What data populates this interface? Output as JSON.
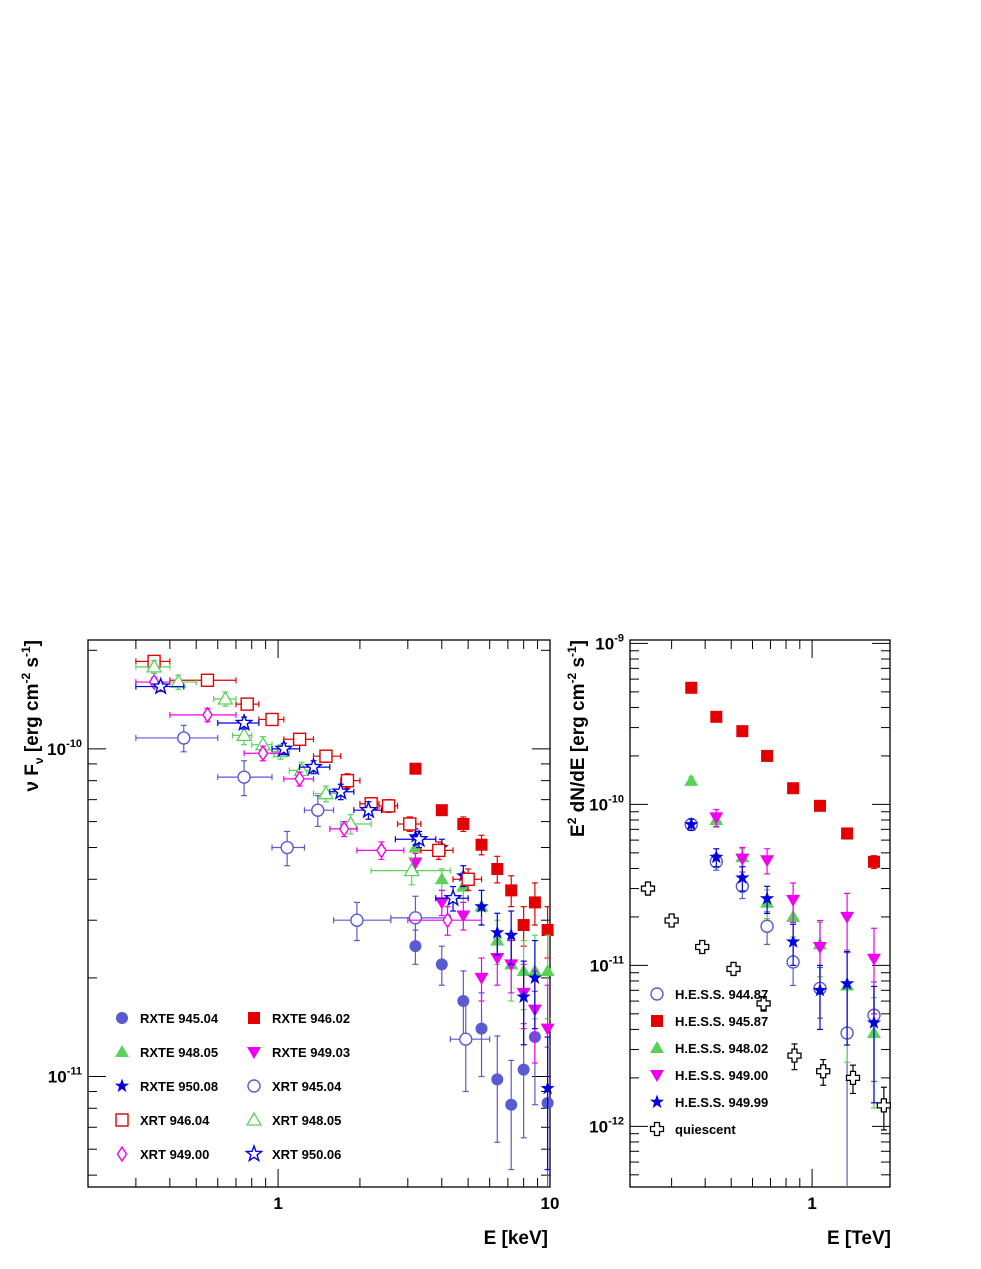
{
  "chart_data": [
    {
      "type": "scatter",
      "xlabel": "E [keV]",
      "ylabel": "ν F_ν [erg cm^-2 s^-1]",
      "x_scale": "log",
      "y_scale": "log",
      "xlim": [
        0.2,
        10
      ],
      "ylim": [
        4.6e-12,
        2.15e-10
      ],
      "x_tick_labels": [
        "1",
        "10"
      ],
      "y_tick_labels": [
        "10^-10",
        "10^-11"
      ],
      "legend_position": "bottom-left",
      "series": [
        {
          "name": "RXTE 945.04",
          "color": "#5a5ad2",
          "marker": "circle-filled",
          "points": [
            [
              3.2,
              2.5e-11,
              0,
              3e-12
            ],
            [
              4.0,
              2.2e-11,
              0,
              3e-12
            ],
            [
              4.8,
              1.7e-11,
              0,
              4e-12
            ],
            [
              5.6,
              1.4e-11,
              0,
              4e-12
            ],
            [
              6.4,
              9.8e-12,
              0,
              3.5e-12
            ],
            [
              7.2,
              8.2e-12,
              0,
              3e-12
            ],
            [
              8.0,
              1.05e-11,
              0,
              4e-12
            ],
            [
              8.8,
              1.32e-11,
              0,
              5e-12
            ],
            [
              9.8,
              8.3e-12,
              0,
              4e-12
            ]
          ]
        },
        {
          "name": "RXTE 946.02",
          "color": "#e20000",
          "marker": "square-filled",
          "points": [
            [
              3.2,
              8.7e-11,
              0,
              2e-12
            ],
            [
              4.0,
              6.5e-11,
              0,
              2e-12
            ],
            [
              4.8,
              5.9e-11,
              0,
              3e-12
            ],
            [
              5.6,
              5.1e-11,
              0,
              3.5e-12
            ],
            [
              6.4,
              4.3e-11,
              0,
              4e-12
            ],
            [
              7.2,
              3.7e-11,
              0,
              4e-12
            ],
            [
              8.0,
              2.9e-11,
              0,
              4e-12
            ],
            [
              8.8,
              3.4e-11,
              0,
              5e-12
            ],
            [
              9.8,
              2.8e-11,
              0,
              5e-12
            ]
          ]
        },
        {
          "name": "RXTE 948.05",
          "color": "#5ad25a",
          "marker": "triangle-up-filled",
          "points": [
            [
              3.2,
              5e-11,
              0,
              4e-12
            ],
            [
              4.0,
              4e-11,
              0,
              3e-12
            ],
            [
              4.8,
              3.8e-11,
              0,
              4e-12
            ],
            [
              5.6,
              3.3e-11,
              0,
              4e-12
            ],
            [
              6.4,
              2.6e-11,
              0,
              4e-12
            ],
            [
              7.2,
              2.2e-11,
              0,
              5e-12
            ],
            [
              8.0,
              2.1e-11,
              0,
              5e-12
            ],
            [
              8.8,
              2.1e-11,
              0,
              6e-12
            ],
            [
              9.8,
              2.1e-11,
              0,
              6e-12
            ]
          ]
        },
        {
          "name": "RXTE 949.03",
          "color": "#f000f0",
          "marker": "triangle-down-filled",
          "points": [
            [
              3.2,
              4.5e-11,
              0,
              3e-12
            ],
            [
              4.0,
              3.4e-11,
              0,
              3e-12
            ],
            [
              4.8,
              3.1e-11,
              0,
              3e-12
            ],
            [
              5.6,
              2e-11,
              0,
              3e-12
            ],
            [
              6.4,
              2.3e-11,
              0,
              4e-12
            ],
            [
              7.2,
              2.2e-11,
              0,
              4e-12
            ],
            [
              8.0,
              1.8e-11,
              0,
              4e-12
            ],
            [
              8.8,
              1.6e-11,
              0,
              5e-12
            ],
            [
              9.8,
              1.4e-11,
              0,
              5e-12
            ]
          ]
        },
        {
          "name": "RXTE 950.08",
          "color": "#0000e0",
          "marker": "star-filled",
          "points": [
            [
              3.2,
              5.4e-11,
              0,
              3e-12
            ],
            [
              4.0,
              5e-11,
              0,
              3e-12
            ],
            [
              4.8,
              4.1e-11,
              0,
              3e-12
            ],
            [
              5.6,
              3.3e-11,
              0,
              4e-12
            ],
            [
              6.4,
              2.75e-11,
              0,
              4e-12
            ],
            [
              7.2,
              2.7e-11,
              0,
              5e-12
            ],
            [
              8.0,
              1.75e-11,
              0,
              5e-12
            ],
            [
              8.8,
              2e-11,
              0,
              6e-12
            ],
            [
              9.8,
              9.2e-12,
              0,
              4e-12
            ]
          ]
        },
        {
          "name": "XRT 945.04",
          "color": "#5a5ad2",
          "marker": "circle-open",
          "points": [
            [
              0.45,
              1.08e-10,
              0.3,
              0.6,
              1e-11
            ],
            [
              0.75,
              8.2e-11,
              0.6,
              0.95,
              1e-11
            ],
            [
              1.08,
              5e-11,
              0.95,
              1.25,
              6e-12
            ],
            [
              1.4,
              6.5e-11,
              1.25,
              1.6,
              7e-12
            ],
            [
              1.95,
              3e-11,
              1.6,
              2.6,
              4e-12
            ],
            [
              3.2,
              3.05e-11,
              2.6,
              4.3,
              5e-12
            ],
            [
              4.9,
              1.3e-11,
              4.3,
              6.0,
              4e-12
            ]
          ]
        },
        {
          "name": "XRT 946.04",
          "color": "#e20000",
          "marker": "square-open",
          "points": [
            [
              0.35,
              1.85e-10,
              0.3,
              0.4,
              6e-12
            ],
            [
              0.55,
              1.62e-10,
              0.4,
              0.7,
              5e-12
            ],
            [
              0.77,
              1.37e-10,
              0.7,
              0.85,
              5e-12
            ],
            [
              0.95,
              1.23e-10,
              0.85,
              1.05,
              5e-12
            ],
            [
              1.2,
              1.07e-10,
              1.05,
              1.35,
              4e-12
            ],
            [
              1.5,
              9.5e-11,
              1.35,
              1.7,
              4e-12
            ],
            [
              1.8,
              8e-11,
              1.7,
              2.0,
              4e-12
            ],
            [
              2.2,
              6.8e-11,
              2.0,
              2.35,
              3e-12
            ],
            [
              2.55,
              6.7e-11,
              2.35,
              2.75,
              3e-12
            ],
            [
              3.05,
              5.9e-11,
              2.75,
              3.35,
              3e-12
            ],
            [
              3.9,
              4.9e-11,
              3.35,
              4.4,
              3e-12
            ],
            [
              5.0,
              4e-11,
              4.4,
              5.6,
              3e-12
            ]
          ]
        },
        {
          "name": "XRT 948.05",
          "color": "#5ad25a",
          "marker": "triangle-up-open",
          "points": [
            [
              0.35,
              1.78e-10,
              0.3,
              0.4,
              8e-12
            ],
            [
              0.43,
              1.6e-10,
              0.4,
              0.5,
              8e-12
            ],
            [
              0.64,
              1.42e-10,
              0.58,
              0.7,
              7e-12
            ],
            [
              0.75,
              1.1e-10,
              0.68,
              0.8,
              7e-12
            ],
            [
              0.88,
              1.03e-10,
              0.8,
              0.95,
              6e-12
            ],
            [
              1.02,
              9.8e-11,
              0.95,
              1.1,
              5e-12
            ],
            [
              1.22,
              8.6e-11,
              1.1,
              1.35,
              5e-12
            ],
            [
              1.5,
              7.3e-11,
              1.35,
              1.7,
              4e-12
            ],
            [
              1.85,
              5.9e-11,
              1.7,
              2.2,
              4e-12
            ],
            [
              3.1,
              4.25e-11,
              2.2,
              4.3,
              4e-12
            ]
          ]
        },
        {
          "name": "XRT 949.00",
          "color": "#f000f0",
          "marker": "diamond-open",
          "points": [
            [
              0.35,
              1.6e-10,
              0.3,
              0.4,
              5e-12
            ],
            [
              0.55,
              1.27e-10,
              0.4,
              0.7,
              6e-12
            ],
            [
              0.88,
              9.7e-11,
              0.75,
              1.0,
              5e-12
            ],
            [
              1.2,
              8.1e-11,
              1.05,
              1.35,
              4e-12
            ],
            [
              1.75,
              5.7e-11,
              1.55,
              1.95,
              3e-12
            ],
            [
              2.4,
              4.9e-11,
              1.95,
              2.9,
              3e-12
            ],
            [
              4.2,
              3e-11,
              3.0,
              5.6,
              3e-12
            ]
          ]
        },
        {
          "name": "XRT 950.06",
          "color": "#0000e0",
          "marker": "star-open",
          "points": [
            [
              0.37,
              1.55e-10,
              0.3,
              0.45,
              5e-12
            ],
            [
              0.75,
              1.2e-10,
              0.6,
              0.85,
              5e-12
            ],
            [
              1.05,
              1e-10,
              0.95,
              1.2,
              4e-12
            ],
            [
              1.35,
              8.8e-11,
              1.2,
              1.55,
              4e-12
            ],
            [
              1.7,
              7.4e-11,
              1.55,
              1.9,
              4e-12
            ],
            [
              2.15,
              6.5e-11,
              1.9,
              2.4,
              4e-12
            ],
            [
              3.3,
              5.3e-11,
              2.7,
              3.8,
              3e-12
            ],
            [
              4.4,
              3.5e-11,
              3.8,
              5.0,
              3e-12
            ]
          ]
        }
      ]
    },
    {
      "type": "scatter",
      "xlabel": "E [TeV]",
      "ylabel": "E^2 dN/dE [erg cm^-2 s^-1]",
      "x_scale": "log",
      "y_scale": "log",
      "xlim": [
        0.21,
        1.95
      ],
      "ylim": [
        4.2e-13,
        1.05e-09
      ],
      "x_tick_labels": [
        "1"
      ],
      "y_tick_labels": [
        "10^-9",
        "10^-10",
        "10^-11",
        "10^-12"
      ],
      "legend_position": "bottom-left",
      "series": [
        {
          "name": "H.E.S.S. 944.87",
          "color": "#5a5ad2",
          "marker": "circle-open",
          "points": [
            [
              0.355,
              7.5e-11,
              6e-12
            ],
            [
              0.44,
              4.4e-11,
              5e-12
            ],
            [
              0.55,
              3.1e-11,
              5e-12
            ],
            [
              0.68,
              1.75e-11,
              4e-12
            ],
            [
              0.85,
              1.05e-11,
              3e-12
            ],
            [
              1.07,
              7.2e-12,
              2.5e-12
            ],
            [
              1.35,
              3.8e-12,
              3.5e-12
            ],
            [
              1.7,
              4.9e-12,
              3e-12
            ]
          ]
        },
        {
          "name": "H.E.S.S. 945.87",
          "color": "#e20000",
          "marker": "square-filled",
          "points": [
            [
              0.355,
              5.3e-10,
              1e-11
            ],
            [
              0.44,
              3.5e-10,
              1e-11
            ],
            [
              0.55,
              2.85e-10,
              1e-11
            ],
            [
              0.68,
              2e-10,
              8e-12
            ],
            [
              0.85,
              1.26e-10,
              6e-12
            ],
            [
              1.07,
              9.8e-11,
              5e-12
            ],
            [
              1.35,
              6.6e-11,
              5e-12
            ],
            [
              1.7,
              4.4e-11,
              4e-12
            ]
          ]
        },
        {
          "name": "H.E.S.S. 948.02",
          "color": "#5ad25a",
          "marker": "triangle-up-filled",
          "points": [
            [
              0.355,
              1.4e-10,
              8e-12
            ],
            [
              0.44,
              8e-11,
              8e-12
            ],
            [
              0.55,
              4.7e-11,
              6e-12
            ],
            [
              0.68,
              2.45e-11,
              5e-12
            ],
            [
              0.85,
              2e-11,
              5e-12
            ],
            [
              1.07,
              1.35e-11,
              5e-12
            ],
            [
              1.35,
              7.5e-12,
              5e-12
            ],
            [
              1.7,
              3.8e-12,
              2.5e-12
            ]
          ]
        },
        {
          "name": "H.E.S.S. 949.00",
          "color": "#f000f0",
          "marker": "triangle-down-filled",
          "points": [
            [
              0.44,
              8.3e-11,
              1e-11
            ],
            [
              0.55,
              4.6e-11,
              8e-12
            ],
            [
              0.68,
              4.5e-11,
              8e-12
            ],
            [
              0.85,
              2.55e-11,
              7e-12
            ],
            [
              1.07,
              1.3e-11,
              6e-12
            ],
            [
              1.35,
              2e-11,
              8e-12
            ],
            [
              1.7,
              1.1e-11,
              6e-12
            ]
          ]
        },
        {
          "name": "H.E.S.S. 949.99",
          "color": "#0000e0",
          "marker": "star-filled",
          "points": [
            [
              0.355,
              7.5e-11,
              6e-12
            ],
            [
              0.44,
              4.7e-11,
              6e-12
            ],
            [
              0.55,
              3.5e-11,
              6e-12
            ],
            [
              0.68,
              2.6e-11,
              5e-12
            ],
            [
              0.85,
              1.4e-11,
              4e-12
            ],
            [
              1.07,
              7e-12,
              3e-12
            ],
            [
              1.35,
              7.7e-12,
              4.5e-12
            ],
            [
              1.7,
              4.4e-12,
              3e-12
            ]
          ]
        },
        {
          "name": "quiescent",
          "color": "#000000",
          "marker": "cross-open",
          "points": [
            [
              0.245,
              3e-11,
              1.5e-12
            ],
            [
              0.3,
              1.9e-11,
              1.2e-12
            ],
            [
              0.39,
              1.3e-11,
              1e-12
            ],
            [
              0.51,
              9.5e-12,
              8e-13
            ],
            [
              0.66,
              5.8e-12,
              6e-13
            ],
            [
              0.86,
              2.75e-12,
              5e-13
            ],
            [
              1.1,
              2.2e-12,
              4e-13
            ],
            [
              1.42,
              2e-12,
              4e-13
            ],
            [
              1.85,
              1.35e-12,
              4e-13
            ]
          ]
        }
      ]
    }
  ]
}
